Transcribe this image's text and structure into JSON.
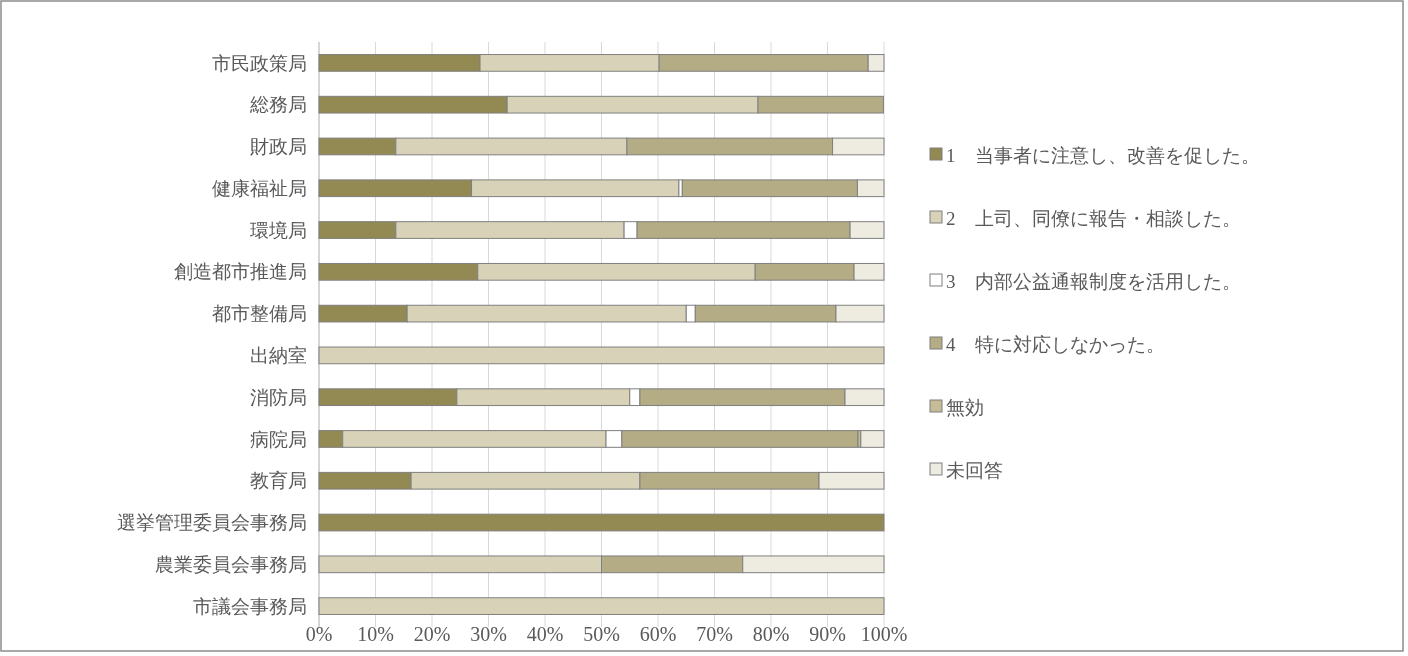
{
  "chart_data": {
    "type": "bar",
    "orientation": "horizontal",
    "stacked": true,
    "categories": [
      "市民政策局",
      "総務局",
      "財政局",
      "健康福祉局",
      "環境局",
      "創造都市推進局",
      "都市整備局",
      "出納室",
      "消防局",
      "病院局",
      "教育局",
      "選挙管理委員会事務局",
      "農業委員会事務局",
      "市議会事務局"
    ],
    "series": [
      {
        "name": "1　当事者に注意し、改善を促した。",
        "color": "#938953",
        "values": [
          28.5,
          33.3,
          13.6,
          27,
          13.6,
          28.1,
          15.6,
          0,
          24.4,
          4.2,
          16.3,
          100,
          0,
          0
        ]
      },
      {
        "name": "2　上司、同僚に報告・相談した。",
        "color": "#d8d3b8",
        "values": [
          31.7,
          44.4,
          40.9,
          36.7,
          40.4,
          49.1,
          49.4,
          100,
          30.6,
          46.6,
          40.5,
          0,
          50,
          100
        ]
      },
      {
        "name": "3　内部公益通報制度を活用した。",
        "color": "#ffffff",
        "values": [
          0,
          0,
          0,
          0.6,
          2.3,
          0,
          1.6,
          0,
          1.8,
          2.8,
          0,
          0,
          0,
          0
        ]
      },
      {
        "name": "4　特に対応しなかった。",
        "color": "#b3ac84",
        "values": [
          37,
          22.2,
          36.4,
          31,
          37.7,
          17.5,
          24.9,
          0,
          36.3,
          41.8,
          31.7,
          0,
          25,
          0
        ]
      },
      {
        "name": "無効",
        "color": "#c4bd97",
        "values": [
          0,
          0,
          0,
          0,
          0,
          0,
          0,
          0,
          0,
          0.5,
          0,
          0,
          0,
          0
        ]
      },
      {
        "name": "未回答",
        "color": "#eeece1",
        "values": [
          2.8,
          0,
          9.1,
          4.7,
          6,
          5.3,
          8.5,
          0,
          6.9,
          4.1,
          11.5,
          0,
          25,
          0
        ]
      }
    ],
    "xlim": [
      0,
      100
    ],
    "xticks": [
      {
        "value": 0,
        "label": "0%"
      },
      {
        "value": 10,
        "label": "10%"
      },
      {
        "value": 20,
        "label": "20%"
      },
      {
        "value": 30,
        "label": "30%"
      },
      {
        "value": 40,
        "label": "40%"
      },
      {
        "value": 50,
        "label": "50%"
      },
      {
        "value": 60,
        "label": "60%"
      },
      {
        "value": 70,
        "label": "70%"
      },
      {
        "value": 80,
        "label": "80%"
      },
      {
        "value": 90,
        "label": "90%"
      },
      {
        "value": 100,
        "label": "100%"
      }
    ],
    "grid": "x",
    "legend": "right"
  }
}
